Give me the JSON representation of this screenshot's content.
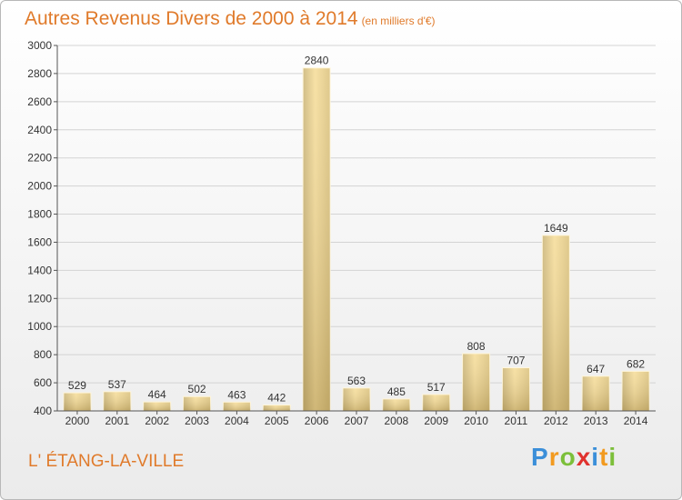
{
  "title": "Autres Revenus Divers de 2000 à 2014",
  "unit": "(en milliers d'€)",
  "place": "L' ÉTANG-LA-VILLE",
  "logo": {
    "letters": [
      "P",
      "r",
      "o",
      "x",
      "i",
      "t",
      "i"
    ],
    "colors": [
      "#3b8fd9",
      "#f29a1f",
      "#7cbf3a",
      "#e0322e",
      "#3b8fd9",
      "#f29a1f",
      "#7cbf3a"
    ]
  },
  "chart_data": {
    "type": "bar",
    "categories": [
      "2000",
      "2001",
      "2002",
      "2003",
      "2004",
      "2005",
      "2006",
      "2007",
      "2008",
      "2009",
      "2010",
      "2011",
      "2012",
      "2013",
      "2014"
    ],
    "values": [
      529,
      537,
      464,
      502,
      463,
      442,
      2840,
      563,
      485,
      517,
      808,
      707,
      1649,
      647,
      682
    ],
    "ylim": [
      400,
      3000
    ],
    "yticks": [
      400,
      600,
      800,
      1000,
      1200,
      1400,
      1600,
      1800,
      2000,
      2200,
      2400,
      2600,
      2800,
      3000
    ],
    "grid": true,
    "bar_color": "#e8cd84"
  }
}
